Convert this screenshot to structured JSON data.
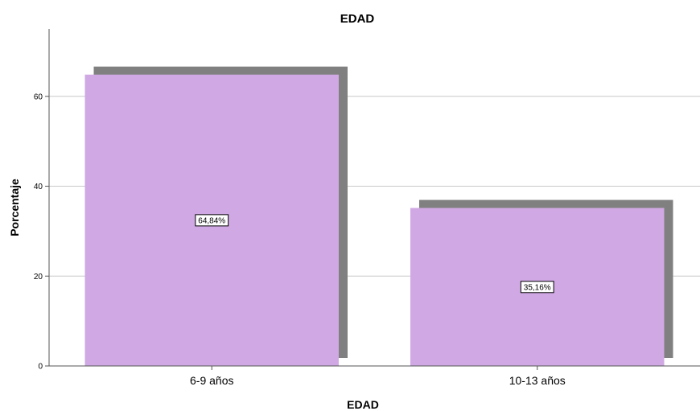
{
  "chart_data": {
    "type": "bar",
    "title": "EDAD",
    "xlabel": "EDAD",
    "ylabel": "Porcentaje",
    "categories": [
      "6-9 años",
      "10-13 años"
    ],
    "values": [
      64.84,
      35.16
    ],
    "data_labels": [
      "64,84%",
      "35,16%"
    ],
    "ylim": [
      0,
      75
    ],
    "yticks": [
      0,
      20,
      40,
      60
    ],
    "ytick_labels": [
      "0",
      "20",
      "40",
      "60"
    ],
    "grid": true,
    "bar_color": "#d0a9e4",
    "shadow_color": "#808080",
    "grid_color": "#c8c8c8",
    "axis_color": "#555555"
  }
}
